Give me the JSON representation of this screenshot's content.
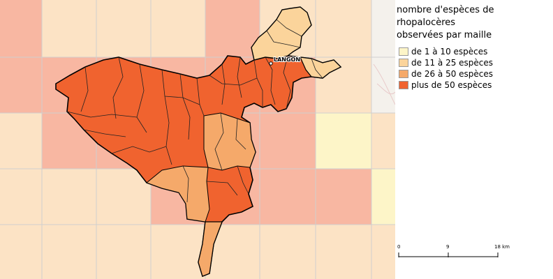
{
  "map": {
    "town_label": "LANGON",
    "colors": {
      "class1": "#fdf5c8",
      "class2": "#fbd49b",
      "class3": "#f5a96a",
      "class4": "#f0632f",
      "grid_light": "#fce3c5",
      "grid_medium": "#f8b7a2",
      "boundary": "#222222",
      "outline": "#000000"
    }
  },
  "legend": {
    "title_lines": [
      "nombre d'espèces de",
      "rhopalocères",
      "observées par maille"
    ],
    "items": [
      {
        "label": "de 1 à 10 espèces",
        "color": "#fdf5c8"
      },
      {
        "label": "de 11 à 25 espèces",
        "color": "#fbd49b"
      },
      {
        "label": "de 26 à 50 espèces",
        "color": "#f5a96a"
      },
      {
        "label": "plus de 50 espèces",
        "color": "#f0632f"
      }
    ]
  },
  "scalebar": {
    "ticks": [
      "0",
      "9",
      "18 km"
    ]
  }
}
